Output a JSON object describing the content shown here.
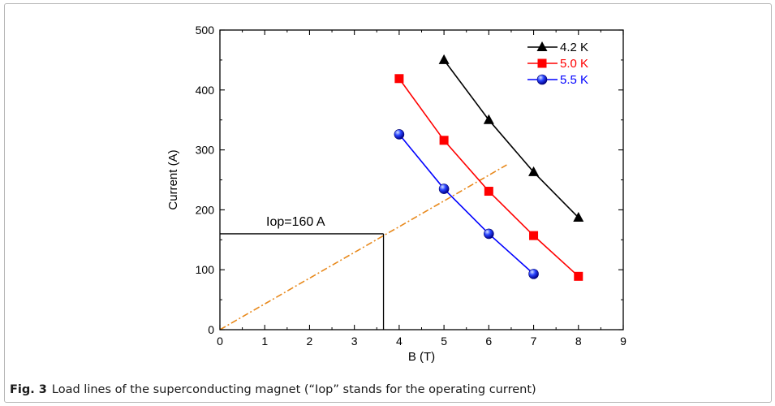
{
  "caption": {
    "label": "Fig. 3",
    "text": "Load lines of the superconducting magnet (“Iop” stands for the operating current)"
  },
  "chart_data": {
    "type": "line",
    "title": "",
    "xlabel": "B (T)",
    "ylabel": "Current (A)",
    "xlim": [
      0,
      9
    ],
    "ylim": [
      0,
      500
    ],
    "xticks": [
      0,
      1,
      2,
      3,
      4,
      5,
      6,
      7,
      8,
      9
    ],
    "yticks": [
      0,
      100,
      200,
      300,
      400,
      500
    ],
    "grid": false,
    "legend_position": "top-right",
    "series": [
      {
        "name": "4.2 K",
        "color": "#000000",
        "marker": "triangle",
        "x": [
          5,
          6,
          7,
          8
        ],
        "y": [
          450,
          350,
          263,
          187
        ]
      },
      {
        "name": "5.0 K",
        "color": "#ff0000",
        "marker": "square",
        "x": [
          4,
          5,
          6,
          7,
          8
        ],
        "y": [
          419,
          316,
          231,
          157,
          89
        ]
      },
      {
        "name": "5.5 K",
        "color": "#0000ff",
        "marker": "sphere",
        "x": [
          4,
          5,
          6,
          7
        ],
        "y": [
          326,
          235,
          160,
          93
        ]
      }
    ],
    "load_line": {
      "color": "#e8891c",
      "style": "dash-dot",
      "x": [
        0,
        6.4
      ],
      "y": [
        0,
        275
      ]
    },
    "operating_point": {
      "x": 3.65,
      "y": 160
    },
    "annotations": [
      {
        "text": "Iop=160 A"
      }
    ]
  }
}
